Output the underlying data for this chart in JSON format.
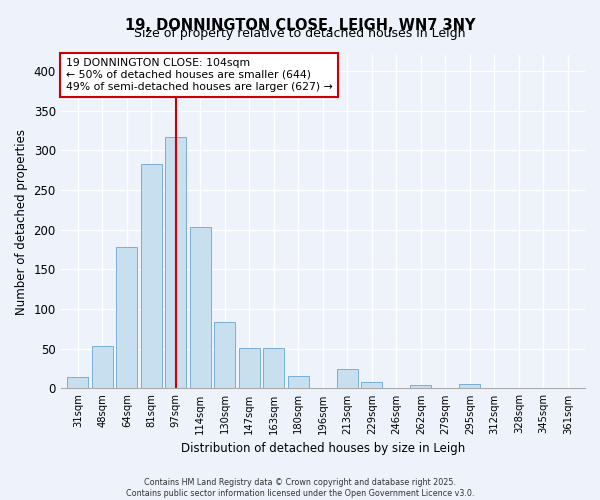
{
  "title": "19, DONNINGTON CLOSE, LEIGH, WN7 3NY",
  "subtitle": "Size of property relative to detached houses in Leigh",
  "xlabel": "Distribution of detached houses by size in Leigh",
  "ylabel": "Number of detached properties",
  "bar_color": "#c8dff0",
  "bar_edge_color": "#7aaed4",
  "background_color": "#eef2fb",
  "grid_color": "#ffffff",
  "categories": [
    "31sqm",
    "48sqm",
    "64sqm",
    "81sqm",
    "97sqm",
    "114sqm",
    "130sqm",
    "147sqm",
    "163sqm",
    "180sqm",
    "196sqm",
    "213sqm",
    "229sqm",
    "246sqm",
    "262sqm",
    "279sqm",
    "295sqm",
    "312sqm",
    "328sqm",
    "345sqm",
    "361sqm"
  ],
  "values": [
    14,
    53,
    178,
    283,
    317,
    203,
    84,
    51,
    51,
    16,
    0,
    24,
    8,
    0,
    4,
    0,
    5,
    0,
    0,
    0,
    0
  ],
  "ylim": [
    0,
    420
  ],
  "yticks": [
    0,
    50,
    100,
    150,
    200,
    250,
    300,
    350,
    400
  ],
  "vline_index": 4,
  "vline_color": "#cc0000",
  "annotation_title": "19 DONNINGTON CLOSE: 104sqm",
  "annotation_line2": "← 50% of detached houses are smaller (644)",
  "annotation_line3": "49% of semi-detached houses are larger (627) →",
  "annotation_box_color": "#ffffff",
  "annotation_box_edge": "#cc0000",
  "footnote1": "Contains HM Land Registry data © Crown copyright and database right 2025.",
  "footnote2": "Contains public sector information licensed under the Open Government Licence v3.0."
}
